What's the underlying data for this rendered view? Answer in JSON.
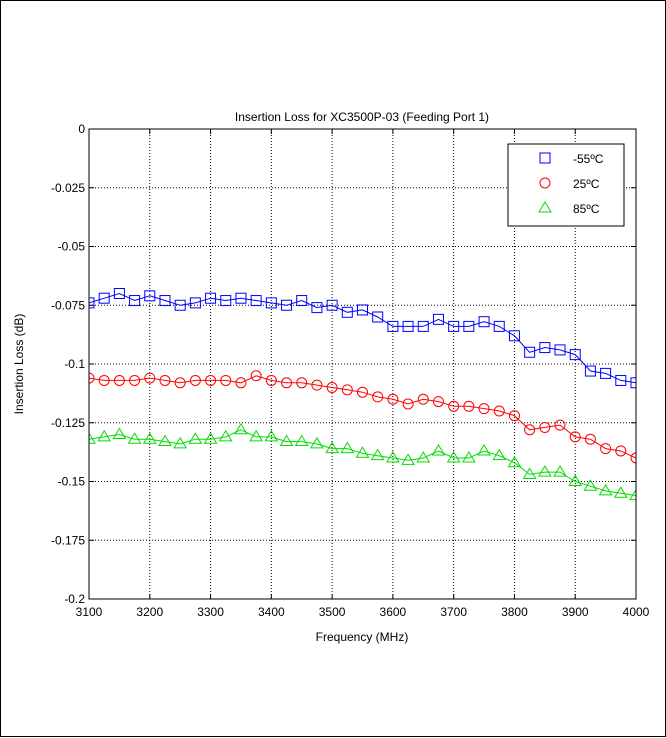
{
  "chart_data": {
    "type": "line",
    "title": "Insertion Loss for XC3500P-03 (Feeding Port 1)",
    "xlabel": "Frequency (MHz)",
    "ylabel": "Insertion Loss (dB)",
    "xlim": [
      3100,
      4000
    ],
    "ylim": [
      -0.2,
      0
    ],
    "xticks": [
      3100,
      3200,
      3300,
      3400,
      3500,
      3600,
      3700,
      3800,
      3900,
      4000
    ],
    "xtick_labels": [
      "3100",
      "3200",
      "3300",
      "3400",
      "3500",
      "3600",
      "3700",
      "3800",
      "3900",
      "4000"
    ],
    "yticks": [
      0,
      -0.025,
      -0.05,
      -0.075,
      -0.1,
      -0.125,
      -0.15,
      -0.175,
      -0.2
    ],
    "ytick_labels": [
      "0",
      "-0.025",
      "-0.05",
      "-0.075",
      "-0.1",
      "-0.125",
      "-0.15",
      "-0.175",
      "-0.2"
    ],
    "grid": true,
    "legend_position": "top-right",
    "x": [
      3100,
      3125,
      3150,
      3175,
      3200,
      3225,
      3250,
      3275,
      3300,
      3325,
      3350,
      3375,
      3400,
      3425,
      3450,
      3475,
      3500,
      3525,
      3550,
      3575,
      3600,
      3625,
      3650,
      3675,
      3700,
      3725,
      3750,
      3775,
      3800,
      3825,
      3850,
      3875,
      3900,
      3925,
      3950,
      3975,
      4000
    ],
    "series": [
      {
        "name": "-55ºC",
        "color": "#0000ff",
        "marker": "square",
        "values": [
          -0.074,
          -0.072,
          -0.07,
          -0.073,
          -0.071,
          -0.073,
          -0.075,
          -0.074,
          -0.072,
          -0.073,
          -0.072,
          -0.073,
          -0.074,
          -0.075,
          -0.073,
          -0.076,
          -0.075,
          -0.078,
          -0.077,
          -0.08,
          -0.084,
          -0.084,
          -0.084,
          -0.081,
          -0.084,
          -0.084,
          -0.082,
          -0.084,
          -0.088,
          -0.095,
          -0.093,
          -0.094,
          -0.096,
          -0.103,
          -0.104,
          -0.107,
          -0.108
        ]
      },
      {
        "name": "25ºC",
        "color": "#ff0000",
        "marker": "circle",
        "values": [
          -0.106,
          -0.107,
          -0.107,
          -0.107,
          -0.106,
          -0.107,
          -0.108,
          -0.107,
          -0.107,
          -0.107,
          -0.108,
          -0.105,
          -0.107,
          -0.108,
          -0.108,
          -0.109,
          -0.11,
          -0.111,
          -0.112,
          -0.114,
          -0.115,
          -0.117,
          -0.115,
          -0.116,
          -0.118,
          -0.118,
          -0.119,
          -0.12,
          -0.122,
          -0.128,
          -0.127,
          -0.126,
          -0.131,
          -0.132,
          -0.136,
          -0.137,
          -0.14
        ]
      },
      {
        "name": "85ºC",
        "color": "#00dd00",
        "marker": "triangle",
        "values": [
          -0.132,
          -0.131,
          -0.13,
          -0.132,
          -0.132,
          -0.133,
          -0.134,
          -0.132,
          -0.132,
          -0.131,
          -0.128,
          -0.131,
          -0.131,
          -0.133,
          -0.133,
          -0.134,
          -0.136,
          -0.136,
          -0.138,
          -0.139,
          -0.14,
          -0.141,
          -0.14,
          -0.137,
          -0.14,
          -0.14,
          -0.137,
          -0.139,
          -0.142,
          -0.147,
          -0.146,
          -0.146,
          -0.15,
          -0.152,
          -0.154,
          -0.155,
          -0.156
        ]
      }
    ]
  }
}
